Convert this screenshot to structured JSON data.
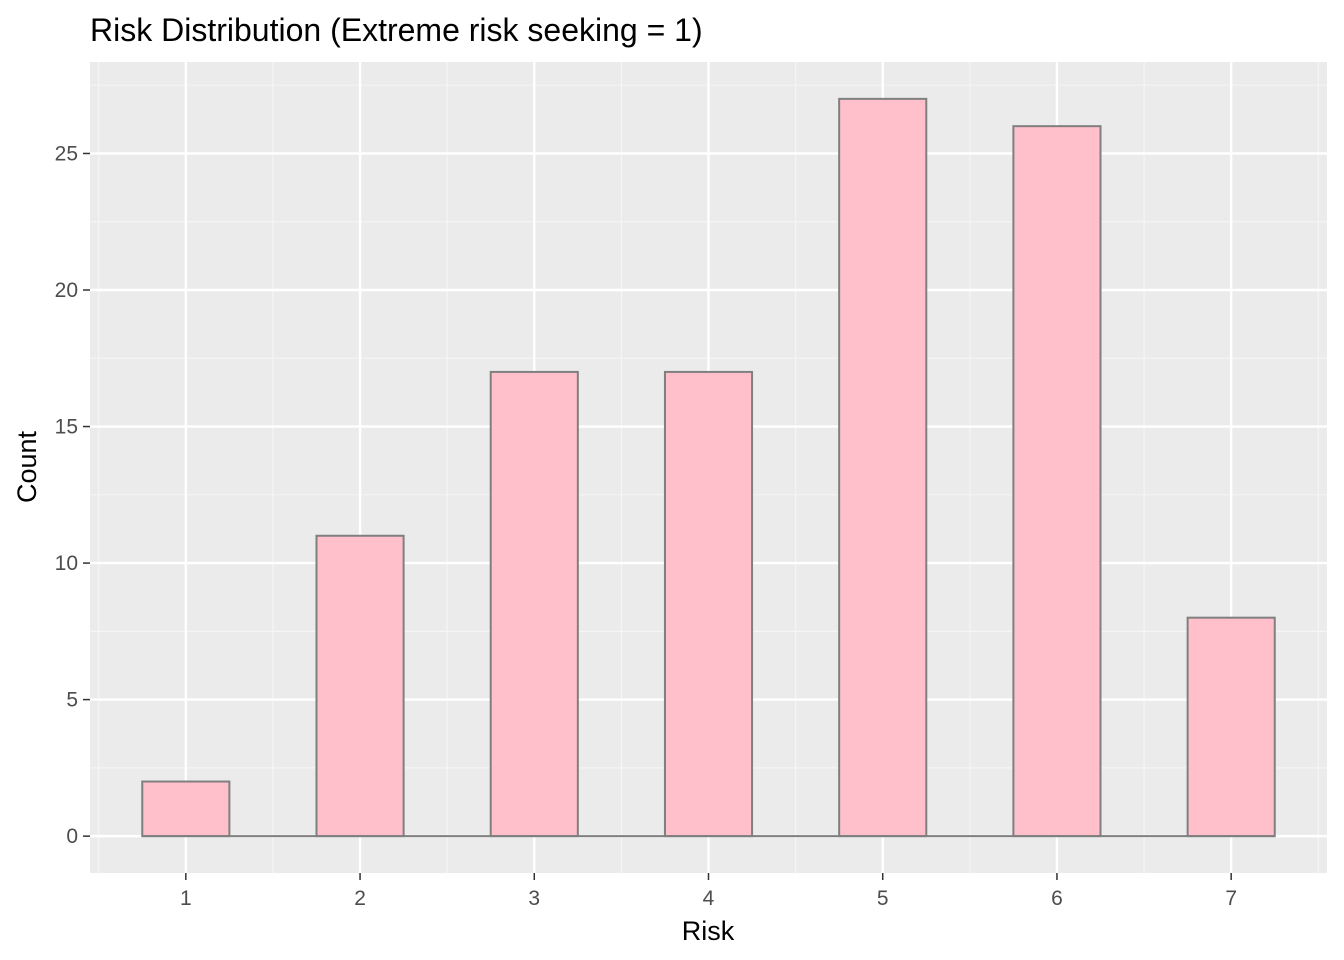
{
  "chart_data": {
    "type": "bar",
    "title": "Risk Distribution (Extreme risk seeking = 1)",
    "xlabel": "Risk",
    "ylabel": "Count",
    "categories": [
      "1",
      "2",
      "3",
      "4",
      "5",
      "6",
      "7"
    ],
    "values": [
      2,
      11,
      17,
      17,
      27,
      26,
      8
    ],
    "xlim": [
      0.45,
      7.55
    ],
    "ylim": [
      -1.35,
      28.35
    ],
    "yticks": [
      0,
      5,
      10,
      15,
      20,
      25
    ],
    "ytick_labels": [
      "0",
      "5",
      "10",
      "15",
      "20",
      "25"
    ],
    "bar_width": 0.5,
    "grid": true,
    "legend": "none",
    "colors": {
      "panel_background": "#ebebeb",
      "grid_major": "#ffffff",
      "grid_minor": "#f5f5f5",
      "bar_fill": "#ffc0cb",
      "bar_outline": "#7f7f7f",
      "tick_mark": "#333333",
      "tick_text": "#4d4d4d",
      "title_text": "#000000"
    }
  }
}
